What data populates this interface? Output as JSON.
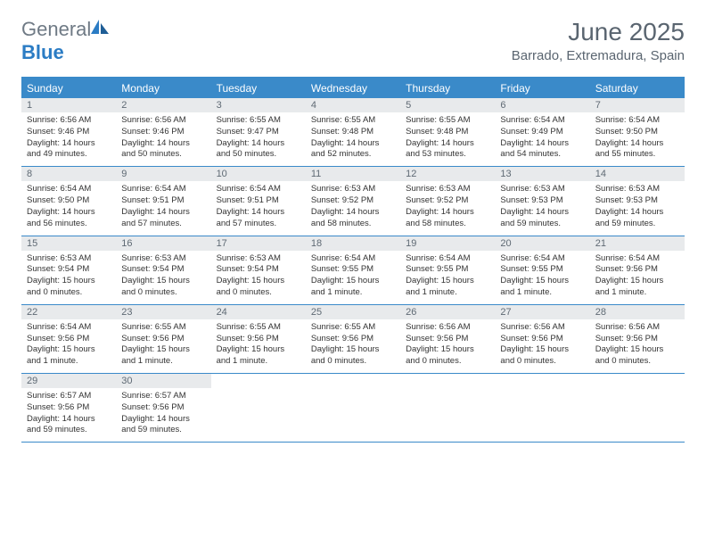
{
  "logo": {
    "general": "General",
    "blue": "Blue"
  },
  "header": {
    "title": "June 2025",
    "location": "Barrado, Extremadura, Spain"
  },
  "daynames": [
    "Sunday",
    "Monday",
    "Tuesday",
    "Wednesday",
    "Thursday",
    "Friday",
    "Saturday"
  ],
  "colors": {
    "accent": "#3a8ac9",
    "header_text": "#5a6570",
    "dayrow_bg": "#e8eaec",
    "logo_gray": "#6f7a85",
    "logo_blue": "#2b7cc4"
  },
  "layout": {
    "cols": 7,
    "rows": 5,
    "cell_font_size_pt": 7
  },
  "days": [
    {
      "n": "1",
      "sr": "6:56 AM",
      "ss": "9:46 PM",
      "dl": "14 hours and 49 minutes."
    },
    {
      "n": "2",
      "sr": "6:56 AM",
      "ss": "9:46 PM",
      "dl": "14 hours and 50 minutes."
    },
    {
      "n": "3",
      "sr": "6:55 AM",
      "ss": "9:47 PM",
      "dl": "14 hours and 50 minutes."
    },
    {
      "n": "4",
      "sr": "6:55 AM",
      "ss": "9:48 PM",
      "dl": "14 hours and 52 minutes."
    },
    {
      "n": "5",
      "sr": "6:55 AM",
      "ss": "9:48 PM",
      "dl": "14 hours and 53 minutes."
    },
    {
      "n": "6",
      "sr": "6:54 AM",
      "ss": "9:49 PM",
      "dl": "14 hours and 54 minutes."
    },
    {
      "n": "7",
      "sr": "6:54 AM",
      "ss": "9:50 PM",
      "dl": "14 hours and 55 minutes."
    },
    {
      "n": "8",
      "sr": "6:54 AM",
      "ss": "9:50 PM",
      "dl": "14 hours and 56 minutes."
    },
    {
      "n": "9",
      "sr": "6:54 AM",
      "ss": "9:51 PM",
      "dl": "14 hours and 57 minutes."
    },
    {
      "n": "10",
      "sr": "6:54 AM",
      "ss": "9:51 PM",
      "dl": "14 hours and 57 minutes."
    },
    {
      "n": "11",
      "sr": "6:53 AM",
      "ss": "9:52 PM",
      "dl": "14 hours and 58 minutes."
    },
    {
      "n": "12",
      "sr": "6:53 AM",
      "ss": "9:52 PM",
      "dl": "14 hours and 58 minutes."
    },
    {
      "n": "13",
      "sr": "6:53 AM",
      "ss": "9:53 PM",
      "dl": "14 hours and 59 minutes."
    },
    {
      "n": "14",
      "sr": "6:53 AM",
      "ss": "9:53 PM",
      "dl": "14 hours and 59 minutes."
    },
    {
      "n": "15",
      "sr": "6:53 AM",
      "ss": "9:54 PM",
      "dl": "15 hours and 0 minutes."
    },
    {
      "n": "16",
      "sr": "6:53 AM",
      "ss": "9:54 PM",
      "dl": "15 hours and 0 minutes."
    },
    {
      "n": "17",
      "sr": "6:53 AM",
      "ss": "9:54 PM",
      "dl": "15 hours and 0 minutes."
    },
    {
      "n": "18",
      "sr": "6:54 AM",
      "ss": "9:55 PM",
      "dl": "15 hours and 1 minute."
    },
    {
      "n": "19",
      "sr": "6:54 AM",
      "ss": "9:55 PM",
      "dl": "15 hours and 1 minute."
    },
    {
      "n": "20",
      "sr": "6:54 AM",
      "ss": "9:55 PM",
      "dl": "15 hours and 1 minute."
    },
    {
      "n": "21",
      "sr": "6:54 AM",
      "ss": "9:56 PM",
      "dl": "15 hours and 1 minute."
    },
    {
      "n": "22",
      "sr": "6:54 AM",
      "ss": "9:56 PM",
      "dl": "15 hours and 1 minute."
    },
    {
      "n": "23",
      "sr": "6:55 AM",
      "ss": "9:56 PM",
      "dl": "15 hours and 1 minute."
    },
    {
      "n": "24",
      "sr": "6:55 AM",
      "ss": "9:56 PM",
      "dl": "15 hours and 1 minute."
    },
    {
      "n": "25",
      "sr": "6:55 AM",
      "ss": "9:56 PM",
      "dl": "15 hours and 0 minutes."
    },
    {
      "n": "26",
      "sr": "6:56 AM",
      "ss": "9:56 PM",
      "dl": "15 hours and 0 minutes."
    },
    {
      "n": "27",
      "sr": "6:56 AM",
      "ss": "9:56 PM",
      "dl": "15 hours and 0 minutes."
    },
    {
      "n": "28",
      "sr": "6:56 AM",
      "ss": "9:56 PM",
      "dl": "15 hours and 0 minutes."
    },
    {
      "n": "29",
      "sr": "6:57 AM",
      "ss": "9:56 PM",
      "dl": "14 hours and 59 minutes."
    },
    {
      "n": "30",
      "sr": "6:57 AM",
      "ss": "9:56 PM",
      "dl": "14 hours and 59 minutes."
    }
  ],
  "labels": {
    "sunrise": "Sunrise:",
    "sunset": "Sunset:",
    "daylight": "Daylight:"
  }
}
